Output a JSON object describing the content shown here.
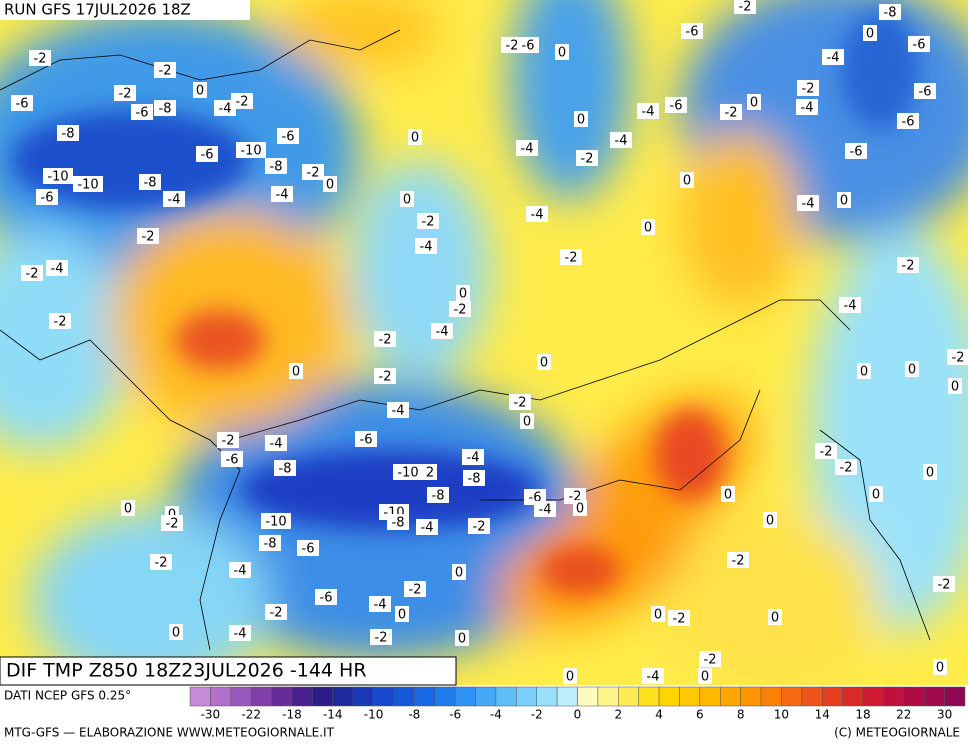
{
  "header": {
    "title": "RUN GFS 17JUL2026 18Z"
  },
  "map": {
    "contour_labels": [
      "-2",
      "-2",
      "-2",
      "-6",
      "-6",
      "-8",
      "-4",
      "-2",
      "0",
      "-8",
      "-6",
      "-10",
      "-8",
      "-6",
      "-2",
      "0",
      "0",
      "-10",
      "-10",
      "-8",
      "-4",
      "-6",
      "-4",
      "-2",
      "-2",
      "-4",
      "-2",
      "0",
      "-2",
      "-4",
      "0",
      "-2",
      "-4",
      "-2",
      "0",
      "-2",
      "0",
      "-4",
      "-2",
      "0",
      "-6",
      "-2",
      "-4",
      "-6",
      "-8",
      "-10",
      "2",
      "-4",
      "-8",
      "-8",
      "-6",
      "-2",
      "-4",
      "0",
      "0",
      "0",
      "-2",
      "-10",
      "-10",
      "-8",
      "-4",
      "-2",
      "-8",
      "-6",
      "-2",
      "-4",
      "0",
      "-2",
      "-6",
      "-4",
      "-2",
      "0",
      "-4",
      "-2",
      "0",
      "0",
      "-4",
      "0",
      "-2",
      "0",
      "0",
      "0",
      "-2",
      "0",
      "-2",
      "0",
      "0",
      "0",
      "-2",
      "0",
      "-2",
      "-2",
      "-2",
      "0",
      "0",
      "0",
      "-4",
      "-2",
      "-4",
      "0",
      "0",
      "0",
      "-2",
      "-4",
      "-4",
      "-2",
      "-4",
      "0",
      "-4",
      "-6",
      "-2",
      "0",
      "-4",
      "-2",
      "-6",
      "0",
      "-2",
      "-6",
      "-2",
      "-8",
      "0",
      "-6",
      "-4",
      "-6",
      "-6",
      "-6"
    ]
  },
  "panel": {
    "title": "DIF TMP Z850 18Z23JUL2026 -144 HR"
  },
  "legend": {
    "source": "DATI NCEP GFS 0.25°",
    "colors": [
      "#c58ad8",
      "#b070cc",
      "#9858bc",
      "#8040a8",
      "#682c98",
      "#4a1e8c",
      "#2c1a88",
      "#1e2a9c",
      "#1838b4",
      "#1848cc",
      "#1658dc",
      "#1868e6",
      "#1f7cee",
      "#2e92f2",
      "#44a8f6",
      "#5ebef8",
      "#7ad0fa",
      "#9ae0fb",
      "#bdeefc",
      "#fffbc0",
      "#fff38a",
      "#ffeb55",
      "#ffe21f",
      "#ffd600",
      "#ffc800",
      "#ffb800",
      "#ffa600",
      "#ff9400",
      "#fb8008",
      "#f56a10",
      "#ee5418",
      "#e63e20",
      "#dc2a28",
      "#cf1a32",
      "#c0103c",
      "#b00c44",
      "#a00a4c",
      "#8c0852"
    ],
    "ticks": [
      "-30",
      "-22",
      "-18",
      "-14",
      "-10",
      "-8",
      "-6",
      "-4",
      "-2",
      "0",
      "2",
      "4",
      "6",
      "8",
      "10",
      "14",
      "18",
      "22",
      "30"
    ]
  },
  "footer": {
    "left": "MTG-GFS — ELABORAZIONE WWW.METEOGIORNALE.IT",
    "right": "(C) METEOGIORNALE"
  }
}
